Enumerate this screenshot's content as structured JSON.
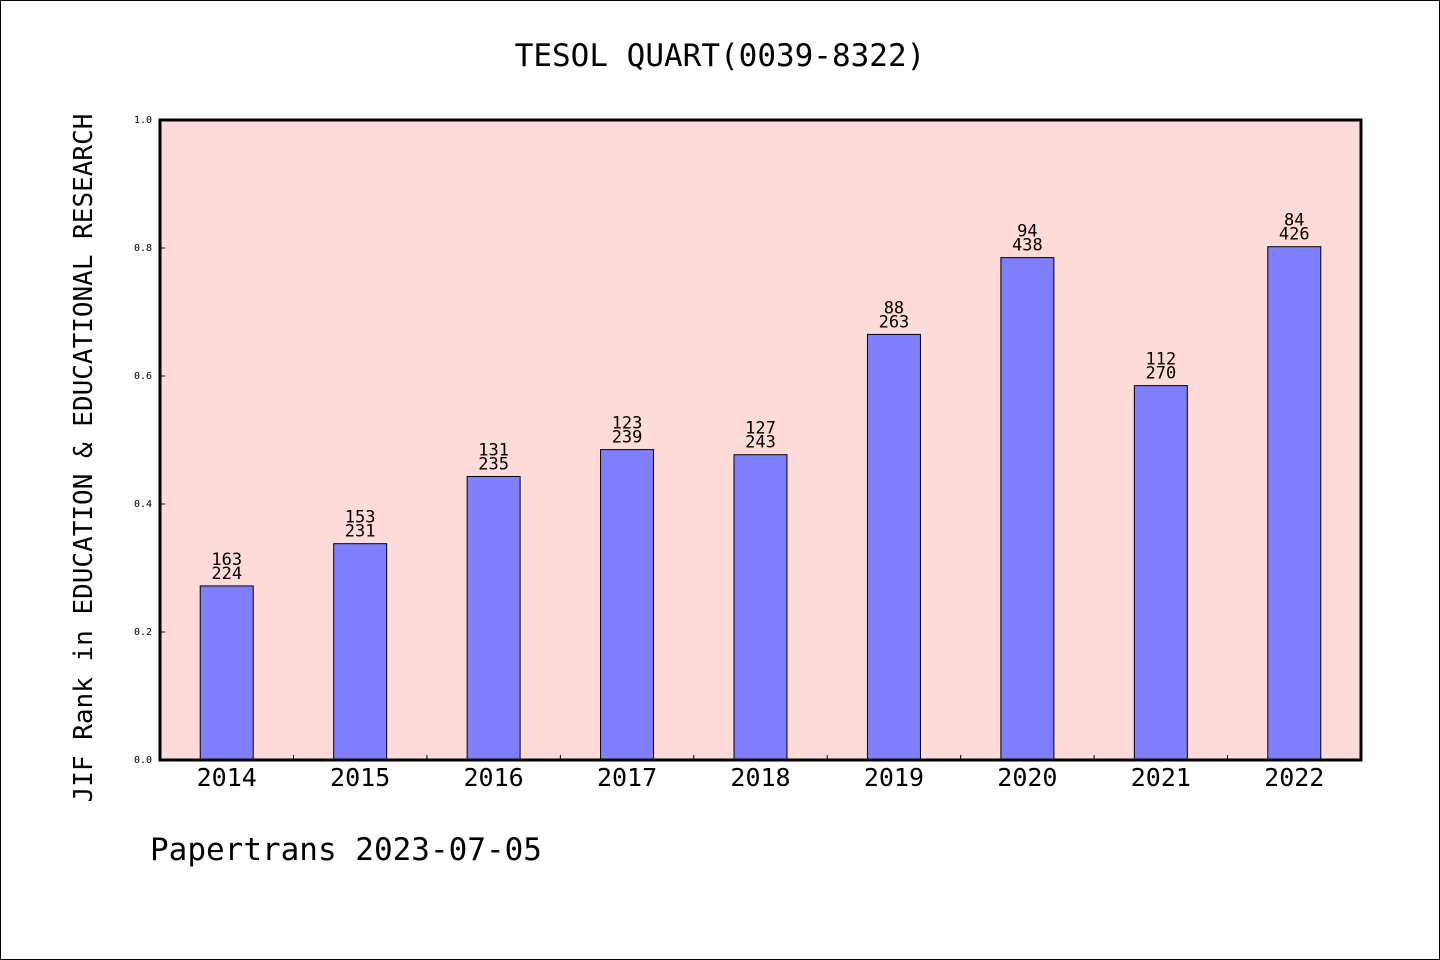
{
  "chart_data": {
    "type": "bar",
    "title": "TESOL QUART(0039-8322)",
    "ylabel": "JIF Rank in EDUCATION & EDUCATIONAL RESEARCH",
    "xlabel": "",
    "categories": [
      "2014",
      "2015",
      "2016",
      "2017",
      "2018",
      "2019",
      "2020",
      "2021",
      "2022"
    ],
    "values": [
      0.272,
      0.338,
      0.443,
      0.485,
      0.477,
      0.665,
      0.785,
      0.585,
      0.802
    ],
    "labels_top": [
      "163",
      "153",
      "131",
      "123",
      "127",
      "88",
      "94",
      "112",
      "84"
    ],
    "labels_bottom": [
      "224",
      "231",
      "235",
      "239",
      "243",
      "263",
      "438",
      "270",
      "426"
    ],
    "ylim": [
      0,
      1.0
    ],
    "yticks": [
      "0.0",
      "0.2",
      "0.4",
      "0.6",
      "0.8",
      "1.0"
    ],
    "grid": false,
    "colors": {
      "plot_bg": "#ffdcd9",
      "bar": "#8080ff",
      "axis": "#000000"
    }
  },
  "footer": "Papertrans 2023-07-05"
}
